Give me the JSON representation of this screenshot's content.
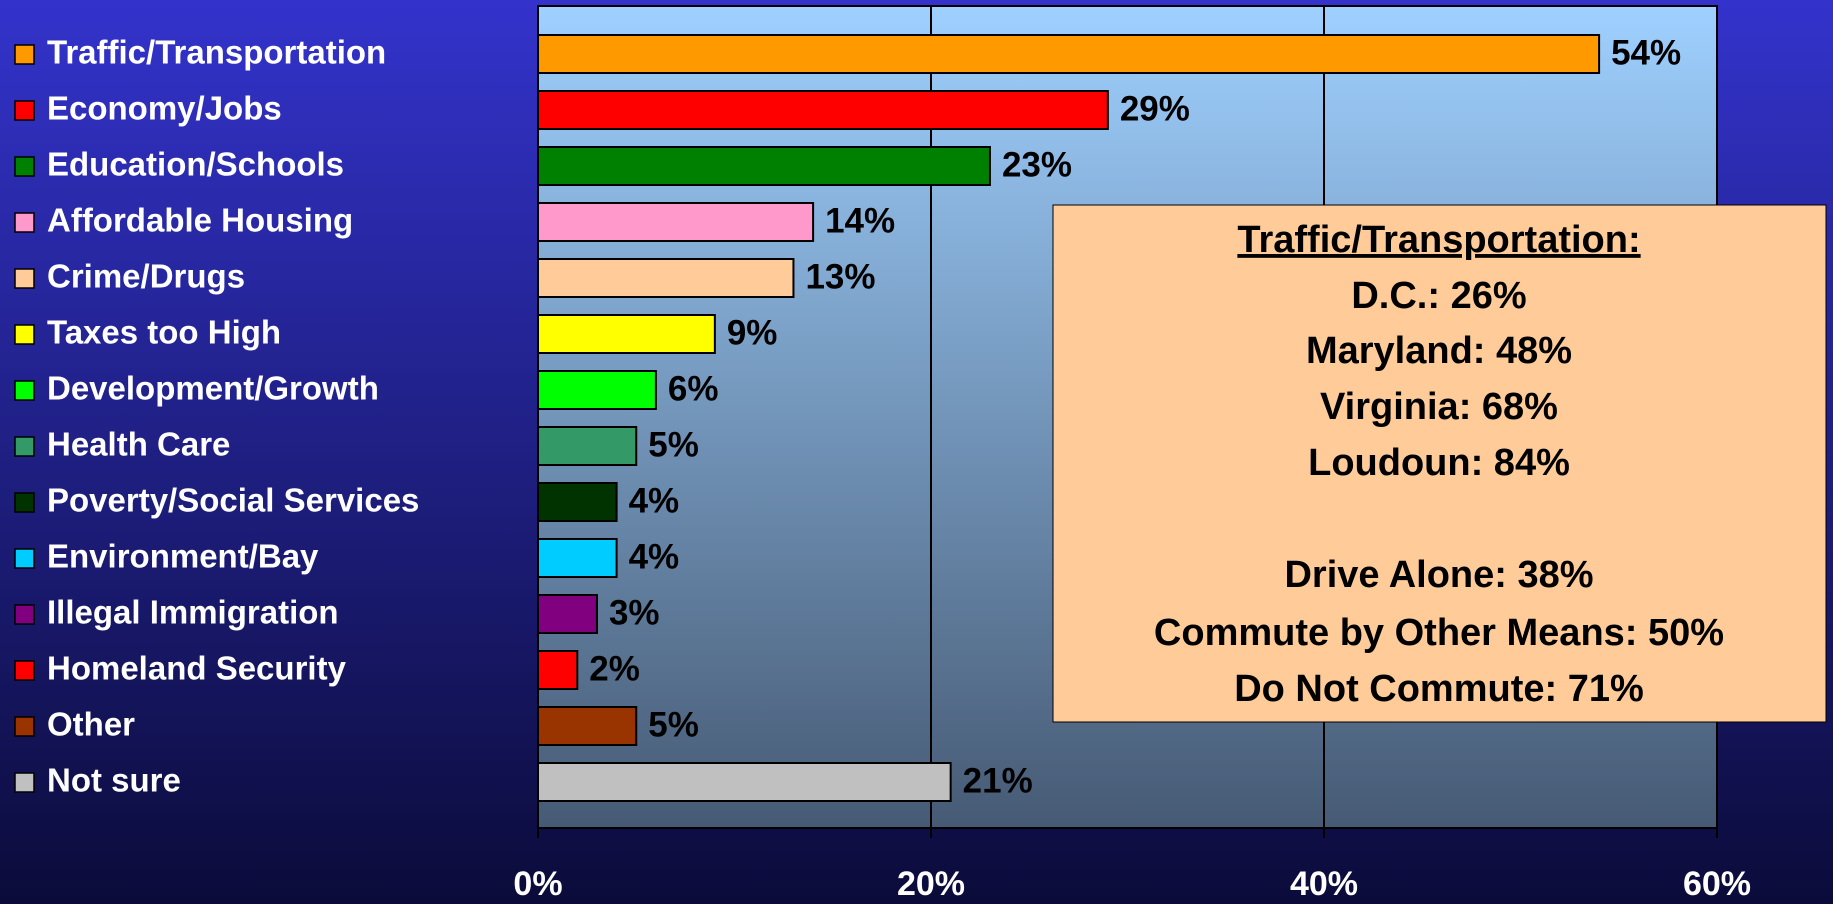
{
  "chart_data": {
    "type": "bar",
    "orientation": "horizontal",
    "categories": [
      "Traffic/Transportation",
      "Economy/Jobs",
      "Education/Schools",
      "Affordable Housing",
      "Crime/Drugs",
      "Taxes too High",
      "Development/Growth",
      "Health Care",
      "Poverty/Social Services",
      "Environment/Bay",
      "Illegal Immigration",
      "Homeland Security",
      "Other",
      "Not sure"
    ],
    "values": [
      54,
      29,
      23,
      14,
      13,
      9,
      6,
      5,
      4,
      4,
      3,
      2,
      5,
      21
    ],
    "value_labels": [
      "54%",
      "29%",
      "23%",
      "14%",
      "13%",
      "9%",
      "6%",
      "5%",
      "4%",
      "4%",
      "3%",
      "2%",
      "5%",
      "21%"
    ],
    "colors": [
      "#ff9900",
      "#ff0000",
      "#008000",
      "#ff99cc",
      "#ffcc99",
      "#ffff00",
      "#00ff00",
      "#339966",
      "#003300",
      "#00ccff",
      "#800080",
      "#ff0000",
      "#993300",
      "#c0c0c0"
    ],
    "xlim": [
      0,
      60
    ],
    "xticks": [
      {
        "value": 0,
        "label": "0%"
      },
      {
        "value": 20,
        "label": "20%"
      },
      {
        "value": 40,
        "label": "40%"
      },
      {
        "value": 60,
        "label": "60%"
      }
    ],
    "grid": true,
    "annotation": {
      "heading": "Traffic/Transportation:",
      "lines": [
        "D.C.: 26%",
        "Maryland: 48%",
        "Virginia: 68%",
        "Loudoun: 84%",
        "Drive Alone: 38%",
        "Commute by Other Means: 50%",
        "Do Not Commute: 71%"
      ]
    }
  }
}
